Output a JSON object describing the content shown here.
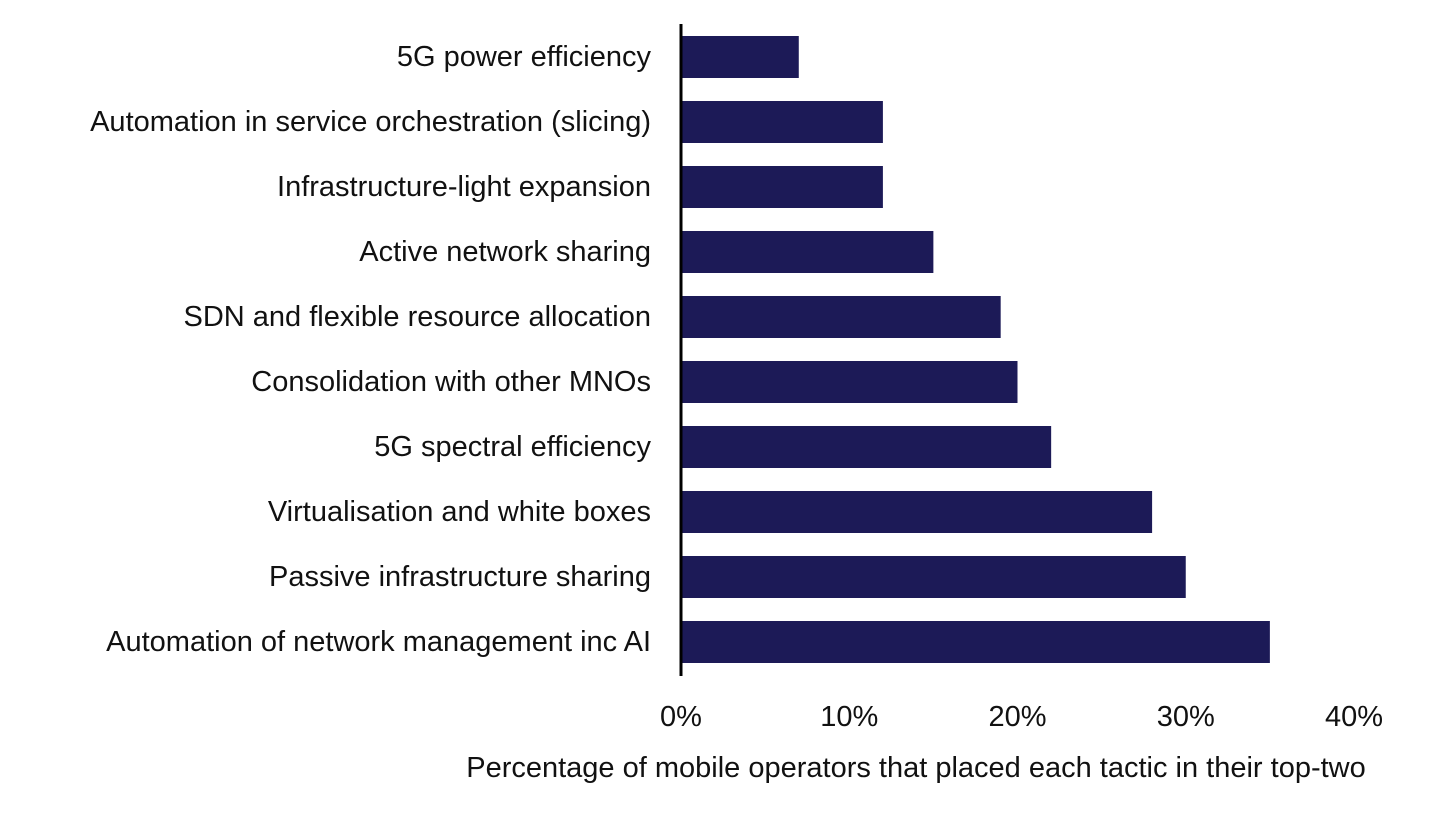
{
  "chart_data": {
    "type": "bar",
    "orientation": "horizontal",
    "categories": [
      "5G power efficiency",
      "Automation in service orchestration (slicing)",
      "Infrastructure-light expansion",
      "Active network sharing",
      "SDN and flexible resource allocation",
      "Consolidation with other MNOs",
      "5G spectral efficiency",
      "Virtualisation and white boxes",
      "Passive infrastructure sharing",
      "Automation of network management inc AI"
    ],
    "values": [
      7,
      12,
      12,
      15,
      19,
      20,
      22,
      28,
      30,
      35
    ],
    "xlabel": "Percentage of mobile operators that placed each tactic in their top-two",
    "ylabel": "",
    "xlim": [
      0,
      40
    ],
    "xticks": [
      0,
      10,
      20,
      30,
      40
    ],
    "xtick_labels": [
      "0%",
      "10%",
      "20%",
      "30%",
      "40%"
    ],
    "grid": false,
    "bar_color": "#1c1a57",
    "axis_color": "#000000"
  }
}
